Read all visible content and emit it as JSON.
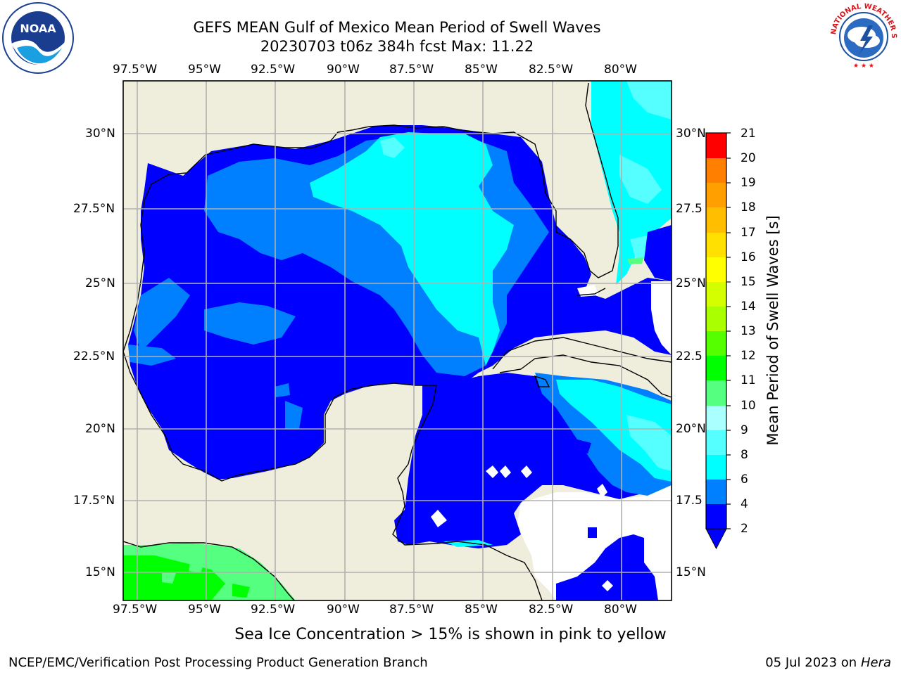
{
  "title": {
    "line1": "GEFS MEAN Gulf of Mexico Mean Period of Swell Waves",
    "line2": "20230703 t06z 384h fcst   Max: 11.22"
  },
  "map": {
    "lon_ticks": [
      "97.5°W",
      "95°W",
      "92.5°W",
      "90°W",
      "87.5°W",
      "85°W",
      "82.5°W",
      "80°W"
    ],
    "lat_ticks": [
      "30°N",
      "27.5°N",
      "25°N",
      "22.5°N",
      "20°N",
      "17.5°N",
      "15°N"
    ],
    "right_lat_ticks": [
      "30°N",
      "27.5",
      "25°N",
      "22.5",
      "20°N",
      "17.5",
      "15°N"
    ],
    "land_color": "#efeedc",
    "gridline_color": "#b0b0b0"
  },
  "colorbar": {
    "title": "Mean Period of Swell Waves [s]",
    "ticks": [
      "2",
      "4",
      "6",
      "8",
      "9",
      "10",
      "11",
      "12",
      "13",
      "14",
      "15",
      "16",
      "17",
      "18",
      "19",
      "20",
      "21"
    ],
    "colors": [
      "#0000ff",
      "#007fff",
      "#00ffff",
      "#55ffff",
      "#aaffff",
      "#55ff7f",
      "#00ff00",
      "#55ff00",
      "#aaff00",
      "#d4ff00",
      "#ffff00",
      "#ffe000",
      "#ffbf00",
      "#ff9f00",
      "#ff7f00",
      "#ff4000",
      "#ff0000"
    ]
  },
  "note": "Sea Ice Concentration > 15% is shown in pink to yellow",
  "footer": {
    "left": "NCEP/EMC/Verification Post Processing Product Generation Branch",
    "right_date": "05 Jul 2023 on ",
    "right_host": "Hera"
  },
  "logos": {
    "left": "noaa-logo",
    "right": "nws-logo",
    "nws_text": "NATIONAL WEATHER SERVICE"
  }
}
